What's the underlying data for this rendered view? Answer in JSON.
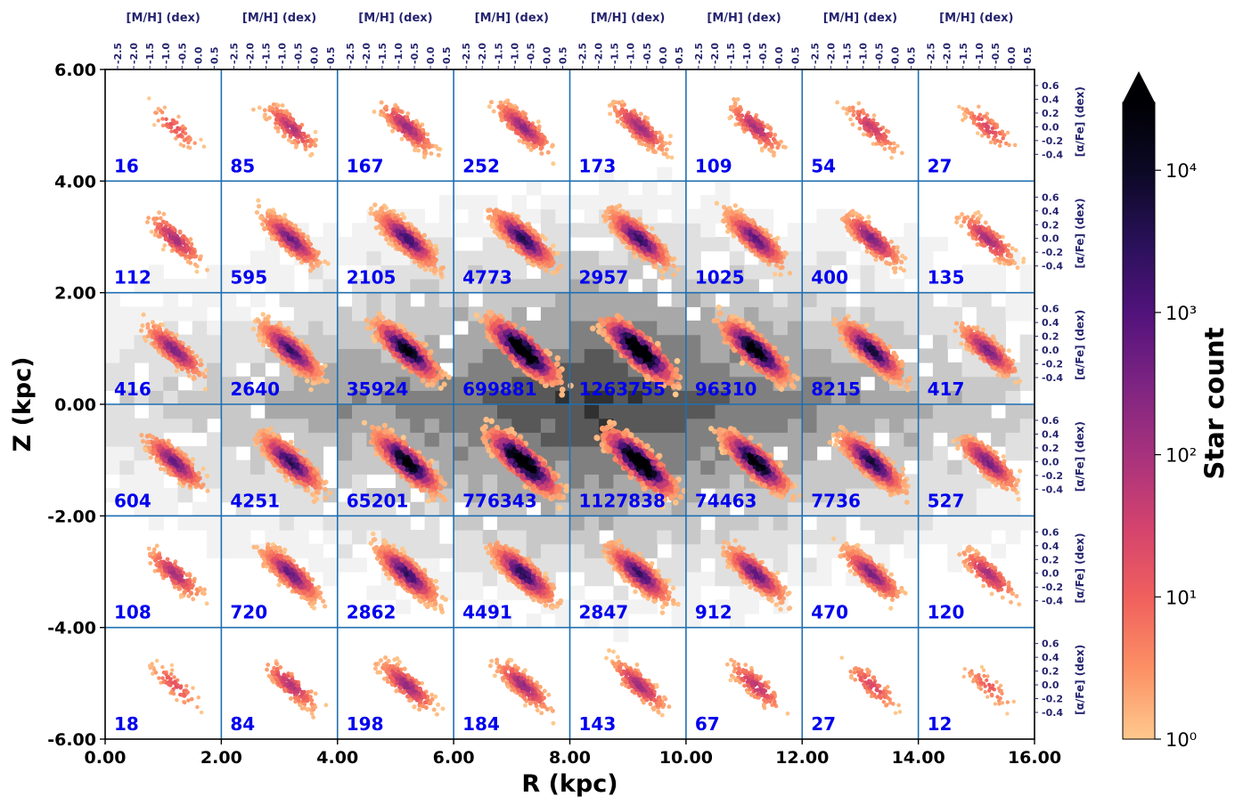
{
  "chart_data": {
    "type": "heatmap",
    "xlabel": "R (kpc)",
    "ylabel": "Z (kpc)",
    "xlim": [
      0,
      16
    ],
    "ylim": [
      -6,
      6
    ],
    "x_ticks": [
      "0.00",
      "2.00",
      "4.00",
      "6.00",
      "8.00",
      "10.00",
      "12.00",
      "14.00",
      "16.00"
    ],
    "y_ticks": [
      "6.00",
      "4.00",
      "2.00",
      "0.00",
      "-2.00",
      "-4.00",
      "-6.00"
    ],
    "grid": true,
    "panel_xlabel": "[M/H] (dex)",
    "panel_xticks": [
      "-2.5",
      "-2.0",
      "-1.5",
      "-1.0",
      "-0.5",
      "0.0",
      "0.5"
    ],
    "panel_ylabel": "[α/Fe] (dex)",
    "panel_yticks": [
      "0.6",
      "0.4",
      "0.2",
      "0.0",
      "-0.2",
      "-0.4"
    ],
    "colorbar": {
      "label": "Star count",
      "scale": "log",
      "range": [
        1,
        30000
      ],
      "ticks": [
        "10⁴",
        "10³",
        "10²",
        "10¹",
        "10⁰"
      ],
      "tick_values": [
        10000,
        1000,
        100,
        10,
        1
      ],
      "colors": [
        "#fec98d",
        "#fc9065",
        "#f0605d",
        "#d3436e",
        "#a8327d",
        "#7e2482",
        "#52137c",
        "#2a115a",
        "#0c0926",
        "#000004"
      ]
    },
    "r_bins": [
      [
        0,
        2
      ],
      [
        2,
        4
      ],
      [
        4,
        6
      ],
      [
        6,
        8
      ],
      [
        8,
        10
      ],
      [
        10,
        12
      ],
      [
        12,
        14
      ],
      [
        14,
        16
      ]
    ],
    "z_bins": [
      [
        4,
        6
      ],
      [
        2,
        4
      ],
      [
        0,
        2
      ],
      [
        -2,
        0
      ],
      [
        -4,
        -2
      ],
      [
        -6,
        -4
      ]
    ],
    "counts": [
      [
        16,
        85,
        167,
        252,
        173,
        109,
        54,
        27
      ],
      [
        112,
        595,
        2105,
        4773,
        2957,
        1025,
        400,
        135
      ],
      [
        416,
        2640,
        35924,
        699881,
        1263755,
        96310,
        8215,
        417
      ],
      [
        604,
        4251,
        65201,
        776343,
        1127838,
        74463,
        7736,
        527
      ],
      [
        108,
        720,
        2862,
        4491,
        2847,
        912,
        470,
        120
      ],
      [
        18,
        84,
        198,
        184,
        143,
        67,
        27,
        12
      ]
    ],
    "count_labels": [
      [
        "16",
        "85",
        "167",
        "252",
        "173",
        "109",
        "54",
        "27"
      ],
      [
        "112",
        "595",
        "2105",
        "4773",
        "2957",
        "1025",
        "400",
        "135"
      ],
      [
        "416",
        "2640",
        "35924",
        "699881",
        "1263755",
        "96310",
        "8215",
        "417"
      ],
      [
        "604",
        "4251",
        "65201",
        "776343",
        "1127838",
        "74463",
        "7736",
        "527"
      ],
      [
        "108",
        "720",
        "2862",
        "4491",
        "2847",
        "912",
        "470",
        "120"
      ],
      [
        "18",
        "84",
        "198",
        "184",
        "143",
        "67",
        "27",
        "12"
      ]
    ],
    "colors": {
      "grid_lines": "#1f6fb2",
      "count_text": "#0000ee",
      "panel_axis_text": "#25246e",
      "density_background": [
        "#f2f2f2",
        "#e0e0e0",
        "#c8c8c8",
        "#a8a8a8",
        "#808080",
        "#585858",
        "#303030",
        "#101010"
      ]
    }
  }
}
